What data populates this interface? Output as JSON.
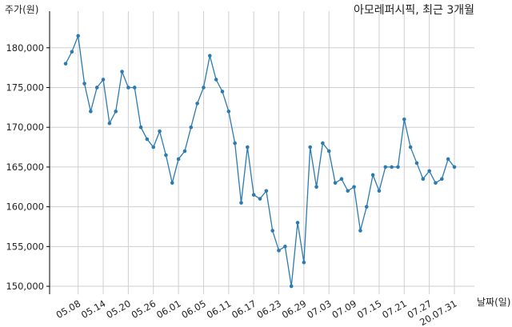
{
  "chart_data": {
    "type": "line",
    "title": "아모레퍼시픽, 최근 3개월",
    "ylabel": "주가(원)",
    "xlabel": "날짜(일)",
    "ylim": [
      149000,
      184000
    ],
    "grid": true,
    "y_ticks": [
      150000,
      155000,
      160000,
      165000,
      170000,
      175000,
      180000
    ],
    "y_tick_labels": [
      "150,000",
      "155,000",
      "160,000",
      "165,000",
      "170,000",
      "175,000",
      "180,000"
    ],
    "x_tick_labels": [
      "05.08",
      "05.14",
      "05.20",
      "05.26",
      "06.01",
      "06.05",
      "06.11",
      "06.17",
      "06.23",
      "06.29",
      "07.03",
      "07.09",
      "07.15",
      "07.21",
      "07.27",
      "20.07.31"
    ],
    "x_tick_index": [
      2,
      6,
      10,
      14,
      18,
      22,
      26,
      30,
      34,
      38,
      42,
      46,
      50,
      54,
      58,
      62
    ],
    "series": [
      {
        "values": [
          178000,
          179500,
          181500,
          175500,
          172000,
          175000,
          176000,
          170500,
          172000,
          177000,
          175000,
          175000,
          170000,
          168500,
          167500,
          169500,
          166500,
          163000,
          166000,
          167000,
          170000,
          173000,
          175000,
          179000,
          176000,
          174500,
          172000,
          168000,
          160500,
          167500,
          161500,
          161000,
          162000,
          157000,
          154500,
          155000,
          150000,
          158000,
          153000,
          167500,
          162500,
          168000,
          167000,
          163000,
          163500,
          162000,
          162500,
          157000,
          160000,
          164000,
          162000,
          165000,
          165000,
          165000,
          171000,
          167500,
          165500,
          163500,
          164500,
          163000,
          163500,
          166000,
          165000
        ]
      }
    ]
  }
}
